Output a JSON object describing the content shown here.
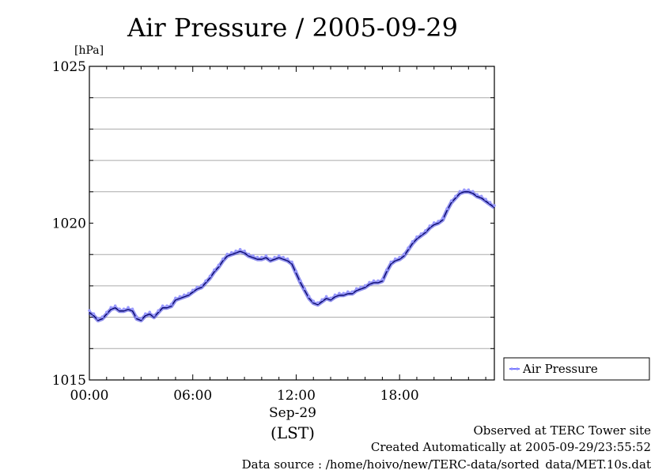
{
  "chart_data": {
    "type": "line",
    "title": "Air Pressure / 2005-09-29",
    "ylabel": "[hPa]",
    "ylim": [
      1015,
      1025
    ],
    "yticks": [
      {
        "value": 1025,
        "label": "1025"
      },
      {
        "value": 1020,
        "label": "1020"
      },
      {
        "value": 1015,
        "label": "1015"
      }
    ],
    "ygrid": [
      1016,
      1017,
      1018,
      1019,
      1021,
      1022,
      1023,
      1024
    ],
    "xlim": [
      0,
      23.5
    ],
    "xticks": [
      {
        "value": 0,
        "label": "00:00"
      },
      {
        "value": 6,
        "label": "06:00"
      },
      {
        "value": 12,
        "label": "12:00"
      },
      {
        "value": 18,
        "label": "18:00"
      }
    ],
    "xlabel_date": "Sep-29",
    "xlabel_tz": "(LST)",
    "legend": {
      "position": "right",
      "label": "Air Pressure"
    },
    "grid": true,
    "series": [
      {
        "name": "Air Pressure",
        "color": "#4444ff",
        "x": [
          0.0,
          0.25,
          0.5,
          0.75,
          1.0,
          1.25,
          1.5,
          1.75,
          2.0,
          2.25,
          2.5,
          2.75,
          3.0,
          3.25,
          3.5,
          3.75,
          4.0,
          4.25,
          4.5,
          4.75,
          5.0,
          5.25,
          5.5,
          5.75,
          6.0,
          6.25,
          6.5,
          6.75,
          7.0,
          7.25,
          7.5,
          7.75,
          8.0,
          8.25,
          8.5,
          8.75,
          9.0,
          9.25,
          9.5,
          9.75,
          10.0,
          10.25,
          10.5,
          10.75,
          11.0,
          11.25,
          11.5,
          11.75,
          12.0,
          12.25,
          12.5,
          12.75,
          13.0,
          13.25,
          13.5,
          13.75,
          14.0,
          14.25,
          14.5,
          14.75,
          15.0,
          15.25,
          15.5,
          15.75,
          16.0,
          16.25,
          16.5,
          16.75,
          17.0,
          17.25,
          17.5,
          17.75,
          18.0,
          18.25,
          18.5,
          18.75,
          19.0,
          19.25,
          19.5,
          19.75,
          20.0,
          20.25,
          20.5,
          20.75,
          21.0,
          21.25,
          21.5,
          21.75,
          22.0,
          22.25,
          22.5,
          22.75,
          23.0,
          23.25,
          23.5
        ],
        "values": [
          1017.15,
          1017.05,
          1016.9,
          1016.95,
          1017.1,
          1017.25,
          1017.3,
          1017.2,
          1017.2,
          1017.25,
          1017.2,
          1016.95,
          1016.9,
          1017.05,
          1017.1,
          1017.0,
          1017.15,
          1017.3,
          1017.3,
          1017.35,
          1017.55,
          1017.6,
          1017.65,
          1017.7,
          1017.8,
          1017.9,
          1017.95,
          1018.1,
          1018.25,
          1018.45,
          1018.6,
          1018.8,
          1018.95,
          1019.0,
          1019.05,
          1019.1,
          1019.05,
          1018.95,
          1018.9,
          1018.85,
          1018.85,
          1018.9,
          1018.8,
          1018.85,
          1018.9,
          1018.85,
          1018.8,
          1018.7,
          1018.4,
          1018.1,
          1017.85,
          1017.6,
          1017.45,
          1017.4,
          1017.5,
          1017.6,
          1017.55,
          1017.65,
          1017.7,
          1017.7,
          1017.75,
          1017.75,
          1017.85,
          1017.9,
          1017.95,
          1018.05,
          1018.1,
          1018.1,
          1018.15,
          1018.45,
          1018.7,
          1018.8,
          1018.85,
          1018.95,
          1019.15,
          1019.35,
          1019.5,
          1019.6,
          1019.7,
          1019.85,
          1019.95,
          1020.0,
          1020.1,
          1020.4,
          1020.65,
          1020.8,
          1020.95,
          1021.0,
          1021.0,
          1020.95,
          1020.85,
          1020.8,
          1020.7,
          1020.6,
          1020.5
        ]
      }
    ],
    "footer": {
      "line1": "Observed at TERC Tower site",
      "line2": "Created Automatically at 2005-09-29/23:55:52",
      "line3": "Data source : /home/hoivo/new/TERC-data/sorted_data/MET.10s.dat"
    }
  }
}
